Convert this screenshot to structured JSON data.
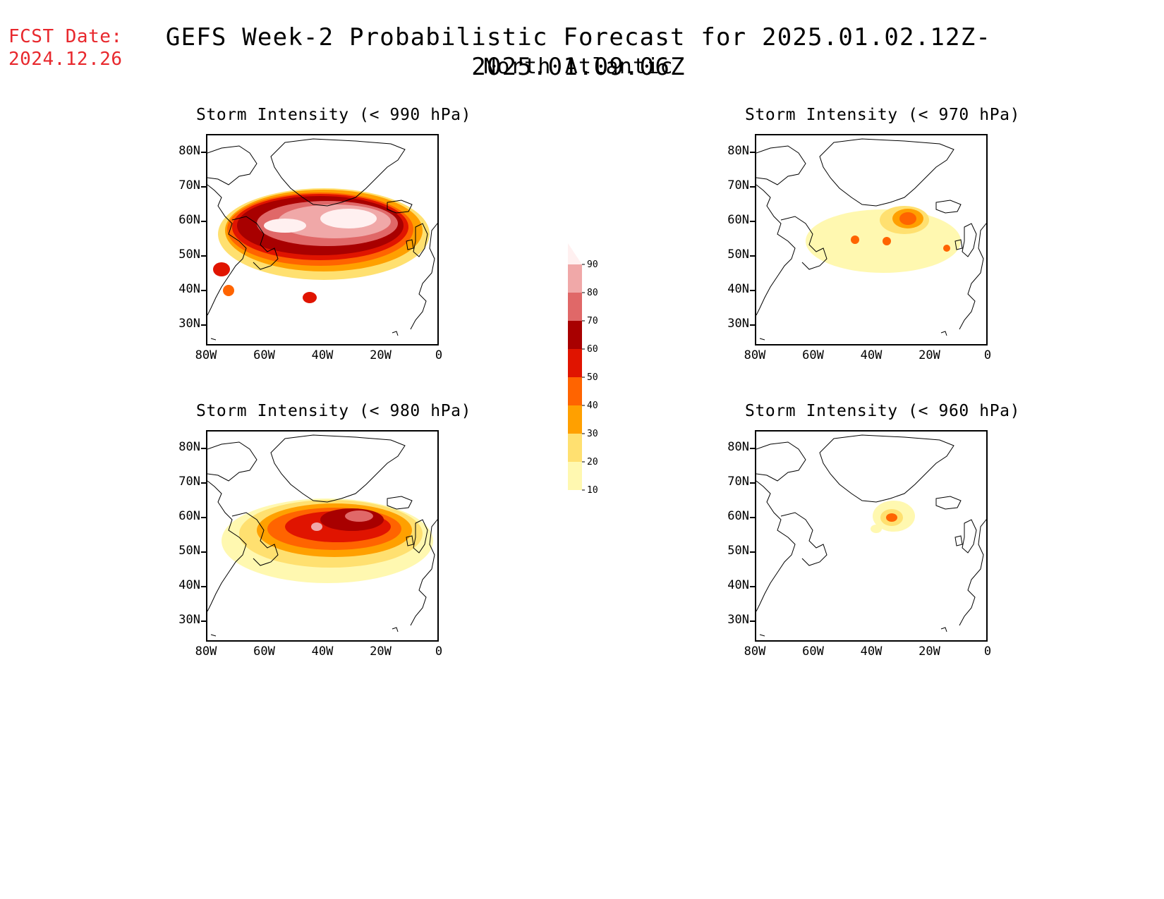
{
  "fcst": {
    "line1": "FCST Date:",
    "line2": "2024.12.26"
  },
  "header": {
    "title": "GEFS Week-2 Probabilistic Forecast for 2025.01.02.12Z-2025.01.09.06Z",
    "subtitle": "North Atlantic"
  },
  "axes": {
    "lat_labels": [
      "80N",
      "70N",
      "60N",
      "50N",
      "40N",
      "30N"
    ],
    "lon_labels": [
      "80W",
      "60W",
      "40W",
      "20W",
      "0"
    ]
  },
  "colorbar": {
    "levels": [
      "90",
      "80",
      "70",
      "60",
      "50",
      "40",
      "30",
      "20",
      "10"
    ],
    "colors": [
      "#fff0f0",
      "#f0a8a8",
      "#e06868",
      "#a80000",
      "#e01400",
      "#ff6400",
      "#ffa000",
      "#ffe070",
      "#fff8b0"
    ]
  },
  "panels": [
    {
      "title": "Storm Intensity (< 990 hPa)"
    },
    {
      "title": "Storm Intensity (< 970 hPa)"
    },
    {
      "title": "Storm Intensity (< 980 hPa)"
    },
    {
      "title": "Storm Intensity (< 960 hPa)"
    }
  ]
}
